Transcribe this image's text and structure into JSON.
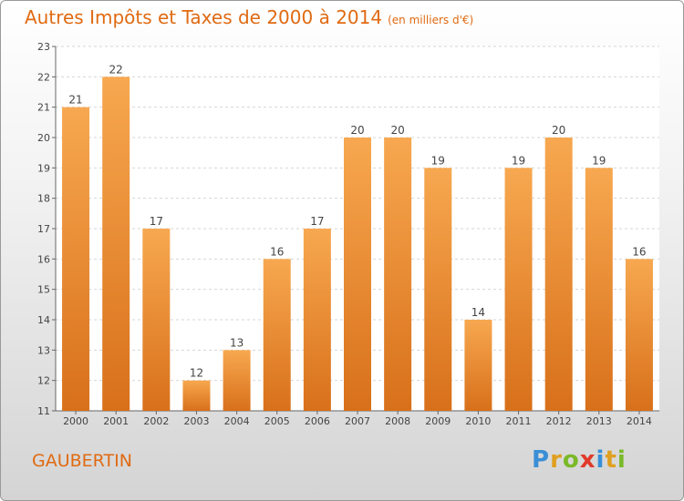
{
  "title": "Autres Impôts et Taxes de 2000 à 2014",
  "title_unit": "(en milliers d'€)",
  "commune": "GAUBERTIN",
  "logo": {
    "letters": [
      "P",
      "r",
      "o",
      "x",
      "i",
      "t",
      "i"
    ],
    "colors": [
      "#3a8fd6",
      "#e0a020",
      "#7ab928",
      "#e03a2a",
      "#3a8fd6",
      "#e0a020",
      "#7ab928"
    ]
  },
  "colors": {
    "bar": "#e8801f",
    "text": "#e06a12"
  },
  "chart_data": {
    "type": "bar",
    "categories": [
      "2000",
      "2001",
      "2002",
      "2003",
      "2004",
      "2005",
      "2006",
      "2007",
      "2008",
      "2009",
      "2010",
      "2011",
      "2012",
      "2013",
      "2014"
    ],
    "values": [
      21,
      22,
      17,
      12,
      13,
      16,
      17,
      20,
      20,
      19,
      14,
      19,
      20,
      19,
      16
    ],
    "ylim": [
      11,
      23
    ],
    "yticks": [
      11,
      12,
      13,
      14,
      15,
      16,
      17,
      18,
      19,
      20,
      21,
      22,
      23
    ],
    "grid": true,
    "data_labels": true
  }
}
